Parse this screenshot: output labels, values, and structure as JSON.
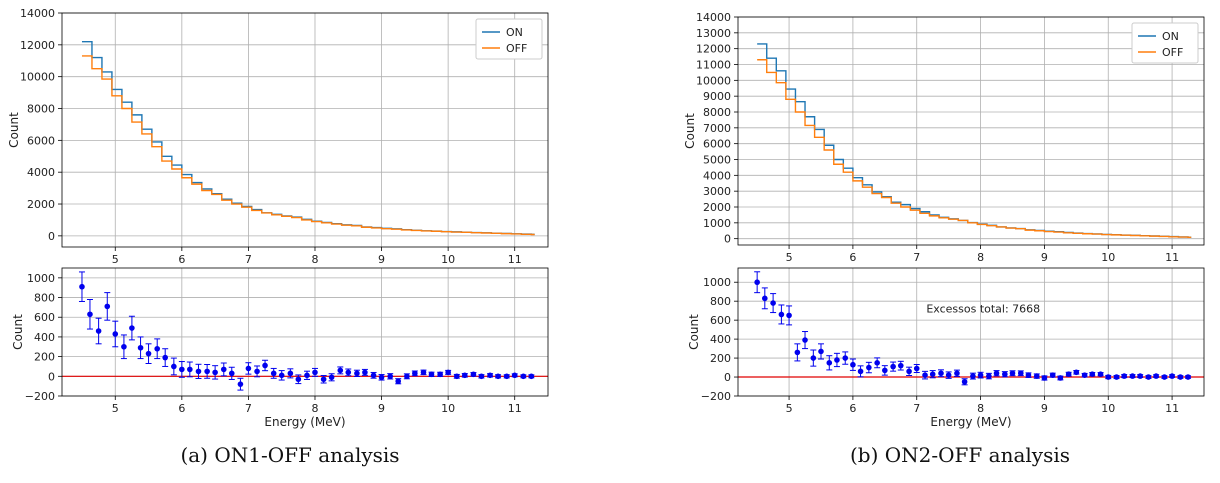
{
  "captions": {
    "a": "(a) ON1-OFF analysis",
    "b": "(b) ON2-OFF analysis"
  },
  "colors": {
    "on": "#1f77b4",
    "off": "#ff7f0e",
    "points": "#0000ee",
    "zero_line": "#e00000",
    "grid": "#b0b0b0"
  },
  "chart_data": [
    {
      "id": "a-top",
      "type": "line",
      "drawstyle": "steps",
      "xlabel": "",
      "ylabel": "Count",
      "xlim": [
        4.2,
        11.5
      ],
      "ylim": [
        -700,
        14000
      ],
      "xticks": [
        5,
        6,
        7,
        8,
        9,
        10,
        11
      ],
      "yticks": [
        0,
        2000,
        4000,
        6000,
        8000,
        10000,
        12000,
        14000
      ],
      "grid": true,
      "legend": "top-right",
      "bin_edges": [
        4.5,
        4.65,
        4.8,
        4.95,
        5.1,
        5.25,
        5.4,
        5.55,
        5.7,
        5.85,
        6.0,
        6.15,
        6.3,
        6.45,
        6.6,
        6.75,
        6.9,
        7.05,
        7.2,
        7.35,
        7.5,
        7.65,
        7.8,
        7.95,
        8.1,
        8.25,
        8.4,
        8.55,
        8.7,
        8.85,
        9.0,
        9.15,
        9.3,
        9.45,
        9.6,
        9.75,
        9.9,
        10.05,
        10.2,
        10.35,
        10.5,
        10.65,
        10.8,
        10.95,
        11.1,
        11.25,
        11.3
      ],
      "series": [
        {
          "name": "ON",
          "values": [
            12200,
            11200,
            10300,
            9200,
            8400,
            7600,
            6700,
            5900,
            5000,
            4450,
            3850,
            3350,
            2950,
            2650,
            2300,
            2050,
            1850,
            1650,
            1450,
            1350,
            1250,
            1180,
            1040,
            920,
            840,
            760,
            690,
            650,
            560,
            520,
            470,
            440,
            390,
            350,
            320,
            300,
            270,
            250,
            230,
            210,
            190,
            170,
            150,
            130,
            110,
            95
          ]
        },
        {
          "name": "OFF",
          "values": [
            11300,
            10500,
            9850,
            8800,
            8000,
            7150,
            6400,
            5600,
            4700,
            4200,
            3650,
            3250,
            2850,
            2600,
            2240,
            2000,
            1800,
            1600,
            1440,
            1320,
            1230,
            1150,
            1000,
            900,
            820,
            740,
            670,
            630,
            540,
            500,
            450,
            420,
            370,
            340,
            310,
            290,
            260,
            240,
            220,
            200,
            180,
            160,
            140,
            120,
            100,
            85
          ]
        }
      ]
    },
    {
      "id": "a-bottom",
      "type": "scatter",
      "errorbars": true,
      "xlabel": "Energy (MeV)",
      "ylabel": "Count",
      "xlim": [
        4.2,
        11.5
      ],
      "ylim": [
        -200,
        1100
      ],
      "xticks": [
        5,
        6,
        7,
        8,
        9,
        10,
        11
      ],
      "yticks": [
        -200,
        0,
        200,
        400,
        600,
        800,
        1000
      ],
      "grid": true,
      "x": [
        4.5,
        4.62,
        4.75,
        4.88,
        5.0,
        5.13,
        5.25,
        5.38,
        5.5,
        5.63,
        5.75,
        5.88,
        6.0,
        6.12,
        6.25,
        6.38,
        6.5,
        6.63,
        6.75,
        6.88,
        7.0,
        7.13,
        7.25,
        7.38,
        7.5,
        7.63,
        7.75,
        7.88,
        8.0,
        8.13,
        8.25,
        8.38,
        8.5,
        8.63,
        8.75,
        8.88,
        9.0,
        9.13,
        9.25,
        9.38,
        9.5,
        9.63,
        9.75,
        9.88,
        10.0,
        10.13,
        10.25,
        10.38,
        10.5,
        10.63,
        10.75,
        10.88,
        11.0,
        11.13,
        11.25
      ],
      "y": [
        910,
        630,
        460,
        710,
        430,
        300,
        490,
        290,
        230,
        280,
        190,
        100,
        70,
        70,
        50,
        50,
        40,
        70,
        30,
        -80,
        80,
        50,
        110,
        30,
        10,
        30,
        -30,
        10,
        40,
        -30,
        -10,
        60,
        40,
        30,
        40,
        10,
        -10,
        0,
        -50,
        0,
        30,
        40,
        20,
        20,
        40,
        0,
        10,
        20,
        0,
        10,
        0,
        0,
        10,
        0,
        0
      ],
      "yerr": [
        150,
        150,
        130,
        140,
        130,
        120,
        120,
        110,
        100,
        100,
        90,
        85,
        80,
        75,
        72,
        70,
        68,
        65,
        62,
        60,
        58,
        55,
        53,
        50,
        48,
        46,
        44,
        42,
        40,
        38,
        36,
        35,
        34,
        32,
        30,
        29,
        28,
        27,
        26,
        25,
        24,
        23,
        22,
        21,
        20,
        19,
        18,
        18,
        17,
        17,
        16,
        16,
        15,
        15,
        15
      ],
      "reference_line": 0
    },
    {
      "id": "b-top",
      "type": "line",
      "drawstyle": "steps",
      "xlabel": "",
      "ylabel": "Count",
      "xlim": [
        4.2,
        11.5
      ],
      "ylim": [
        -400,
        14000
      ],
      "xticks": [
        5,
        6,
        7,
        8,
        9,
        10,
        11
      ],
      "yticks": [
        0,
        1000,
        2000,
        3000,
        4000,
        5000,
        6000,
        7000,
        8000,
        9000,
        10000,
        11000,
        12000,
        13000,
        14000
      ],
      "grid": true,
      "legend": "top-right",
      "bin_edges": [
        4.5,
        4.65,
        4.8,
        4.95,
        5.1,
        5.25,
        5.4,
        5.55,
        5.7,
        5.85,
        6.0,
        6.15,
        6.3,
        6.45,
        6.6,
        6.75,
        6.9,
        7.05,
        7.2,
        7.35,
        7.5,
        7.65,
        7.8,
        7.95,
        8.1,
        8.25,
        8.4,
        8.55,
        8.7,
        8.85,
        9.0,
        9.15,
        9.3,
        9.45,
        9.6,
        9.75,
        9.9,
        10.05,
        10.2,
        10.35,
        10.5,
        10.65,
        10.8,
        10.95,
        11.1,
        11.25,
        11.3
      ],
      "series": [
        {
          "name": "ON",
          "values": [
            12300,
            11400,
            10600,
            9450,
            8650,
            7700,
            6900,
            5900,
            5000,
            4450,
            3850,
            3400,
            2950,
            2650,
            2300,
            2150,
            1900,
            1700,
            1500,
            1350,
            1250,
            1150,
            1020,
            920,
            840,
            740,
            680,
            640,
            560,
            520,
            470,
            440,
            390,
            350,
            320,
            300,
            270,
            250,
            230,
            210,
            190,
            170,
            150,
            130,
            110,
            95
          ]
        },
        {
          "name": "OFF",
          "values": [
            11300,
            10500,
            9850,
            8800,
            8000,
            7150,
            6400,
            5600,
            4700,
            4200,
            3650,
            3250,
            2850,
            2600,
            2240,
            2000,
            1800,
            1600,
            1440,
            1320,
            1230,
            1150,
            1000,
            900,
            820,
            740,
            670,
            630,
            540,
            500,
            450,
            420,
            370,
            340,
            310,
            290,
            260,
            240,
            220,
            200,
            180,
            160,
            140,
            120,
            100,
            85
          ]
        }
      ]
    },
    {
      "id": "b-bottom",
      "type": "scatter",
      "errorbars": true,
      "xlabel": "Energy (MeV)",
      "ylabel": "Count",
      "xlim": [
        4.2,
        11.5
      ],
      "ylim": [
        -200,
        1150
      ],
      "xticks": [
        5,
        6,
        7,
        8,
        9,
        10,
        11
      ],
      "yticks": [
        -200,
        0,
        200,
        400,
        600,
        800,
        1000
      ],
      "grid": true,
      "annotation": "Excessos total: 7668",
      "x": [
        4.5,
        4.62,
        4.75,
        4.88,
        5.0,
        5.13,
        5.25,
        5.38,
        5.5,
        5.63,
        5.75,
        5.88,
        6.0,
        6.12,
        6.25,
        6.38,
        6.5,
        6.63,
        6.75,
        6.88,
        7.0,
        7.13,
        7.25,
        7.38,
        7.5,
        7.63,
        7.75,
        7.88,
        8.0,
        8.13,
        8.25,
        8.38,
        8.5,
        8.63,
        8.75,
        8.88,
        9.0,
        9.13,
        9.25,
        9.38,
        9.5,
        9.63,
        9.75,
        9.88,
        10.0,
        10.13,
        10.25,
        10.38,
        10.5,
        10.63,
        10.75,
        10.88,
        11.0,
        11.13,
        11.25
      ],
      "y": [
        1000,
        830,
        780,
        660,
        650,
        260,
        390,
        200,
        270,
        150,
        180,
        200,
        130,
        60,
        100,
        150,
        70,
        110,
        120,
        60,
        90,
        20,
        30,
        40,
        20,
        40,
        -50,
        10,
        20,
        10,
        40,
        30,
        40,
        40,
        20,
        10,
        -10,
        20,
        -10,
        30,
        50,
        20,
        30,
        30,
        0,
        0,
        10,
        10,
        10,
        0,
        10,
        0,
        10,
        0,
        0
      ],
      "yerr": [
        110,
        110,
        100,
        100,
        100,
        90,
        90,
        85,
        80,
        75,
        70,
        65,
        60,
        58,
        55,
        52,
        50,
        48,
        46,
        44,
        42,
        40,
        38,
        36,
        34,
        33,
        32,
        31,
        30,
        29,
        28,
        27,
        26,
        25,
        24,
        23,
        22,
        21,
        20,
        20,
        19,
        18,
        18,
        17,
        17,
        16,
        16,
        15,
        15,
        15,
        14,
        14,
        14,
        14,
        13
      ],
      "reference_line": 0
    }
  ]
}
